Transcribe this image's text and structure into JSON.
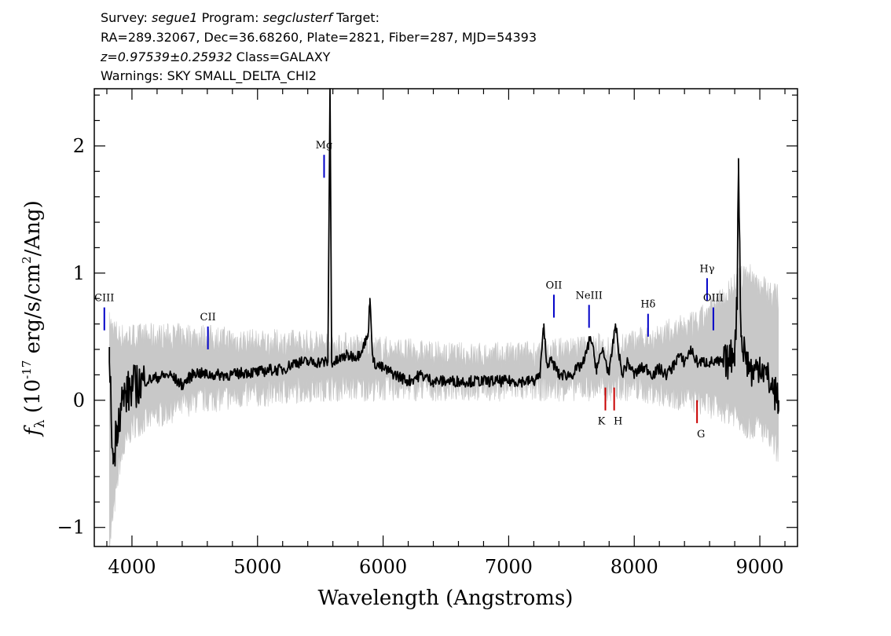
{
  "header": {
    "survey_label": "Survey:",
    "survey": "segue1",
    "program_label": "Program:",
    "program": "segclusterf",
    "target_label": "Target:",
    "line2": "RA=289.32067, Dec=36.68260, Plate=2821, Fiber=287, MJD=54393",
    "redshift": "z=0.97539±0.25932",
    "class_text": "Class=GALAXY",
    "warnings": "Warnings: SKY SMALL_DELTA_CHI2"
  },
  "chart_data": {
    "type": "line",
    "title": "",
    "xlabel": "Wavelength (Angstroms)",
    "ylabel": "f_λ (10^-17 erg/s/cm^2/Ang)",
    "xlim": [
      3700,
      9300
    ],
    "ylim": [
      -1.15,
      2.45
    ],
    "x_ticks": [
      4000,
      5000,
      6000,
      7000,
      8000,
      9000
    ],
    "x_tick_labels": [
      "4000",
      "5000",
      "6000",
      "7000",
      "8000",
      "9000"
    ],
    "y_ticks": [
      -1,
      0,
      1,
      2
    ],
    "y_tick_labels": [
      "−1",
      "0",
      "1",
      "2"
    ],
    "grid": false,
    "series": [
      {
        "role": "flux",
        "color": "#000000",
        "x": [
          3820,
          3850,
          3880,
          3920,
          3960,
          4000,
          4100,
          4200,
          4300,
          4400,
          4500,
          4600,
          4700,
          4800,
          4900,
          5000,
          5100,
          5200,
          5300,
          5400,
          5500,
          5560,
          5577,
          5590,
          5620,
          5700,
          5800,
          5880,
          5895,
          5920,
          6000,
          6100,
          6200,
          6300,
          6400,
          6500,
          6600,
          6700,
          6800,
          6900,
          7000,
          7100,
          7200,
          7250,
          7280,
          7300,
          7350,
          7400,
          7500,
          7600,
          7650,
          7700,
          7750,
          7800,
          7850,
          7900,
          7950,
          8000,
          8050,
          8100,
          8150,
          8200,
          8250,
          8300,
          8350,
          8400,
          8450,
          8500,
          8550,
          8600,
          8650,
          8700,
          8750,
          8800,
          8820,
          8830,
          8850,
          8900,
          8950,
          9000,
          9050,
          9100,
          9150
        ],
        "y": [
          0.3,
          -0.5,
          -0.2,
          0.0,
          0.05,
          0.1,
          0.15,
          0.18,
          0.2,
          0.12,
          0.22,
          0.2,
          0.2,
          0.2,
          0.22,
          0.22,
          0.24,
          0.24,
          0.3,
          0.3,
          0.3,
          0.3,
          2.45,
          0.3,
          0.3,
          0.35,
          0.35,
          0.5,
          0.8,
          0.3,
          0.25,
          0.2,
          0.15,
          0.2,
          0.15,
          0.15,
          0.15,
          0.15,
          0.15,
          0.15,
          0.15,
          0.15,
          0.15,
          0.2,
          0.6,
          0.3,
          0.3,
          0.2,
          0.2,
          0.3,
          0.5,
          0.25,
          0.4,
          0.2,
          0.6,
          0.2,
          0.3,
          0.2,
          0.25,
          0.25,
          0.2,
          0.25,
          0.2,
          0.25,
          0.35,
          0.3,
          0.4,
          0.3,
          0.3,
          0.3,
          0.3,
          0.3,
          0.3,
          0.4,
          0.8,
          1.9,
          0.5,
          0.3,
          0.2,
          0.3,
          0.2,
          0.1,
          0.0
        ]
      },
      {
        "role": "flux error envelope",
        "color": "#c8c8c8",
        "x": [
          3820,
          3900,
          4000,
          4500,
          5000,
          5500,
          6000,
          6500,
          7000,
          7500,
          8000,
          8500,
          8800,
          8900,
          9000,
          9150
        ],
        "y_low": [
          -1.15,
          -0.5,
          -0.2,
          0.0,
          0.05,
          0.1,
          0.1,
          0.1,
          0.1,
          0.1,
          0.1,
          0.0,
          -0.1,
          -0.2,
          -0.2,
          -0.4
        ],
        "y_high": [
          0.6,
          0.5,
          0.5,
          0.5,
          0.45,
          0.45,
          0.4,
          0.35,
          0.35,
          0.4,
          0.45,
          0.6,
          0.9,
          1.0,
          0.9,
          0.8
        ]
      }
    ],
    "emission_lines": [
      {
        "label": "CIII",
        "x": 3780,
        "y_low": 0.55,
        "y_high": 0.73,
        "color": "#0000c8"
      },
      {
        "label": "CII",
        "x": 4605,
        "y_low": 0.4,
        "y_high": 0.58,
        "color": "#0000c8"
      },
      {
        "label": "Mg",
        "x": 5530,
        "y_low": 1.75,
        "y_high": 1.93,
        "color": "#0000c8"
      },
      {
        "label": "OII",
        "x": 7360,
        "y_low": 0.65,
        "y_high": 0.83,
        "color": "#0000c8"
      },
      {
        "label": "NeIII",
        "x": 7640,
        "y_low": 0.57,
        "y_high": 0.75,
        "color": "#0000c8"
      },
      {
        "label": "Hδ",
        "x": 8110,
        "y_low": 0.5,
        "y_high": 0.68,
        "color": "#0000c8"
      },
      {
        "label": "Hγ",
        "x": 8580,
        "y_low": 0.78,
        "y_high": 0.96,
        "color": "#0000c8"
      },
      {
        "label": "OIII",
        "x": 8630,
        "y_low": 0.55,
        "y_high": 0.73,
        "color": "#0000c8"
      }
    ],
    "absorption_lines": [
      {
        "label": "K",
        "x": 7770,
        "y_low": -0.08,
        "y_high": 0.1,
        "color": "#c80000"
      },
      {
        "label": "H",
        "x": 7840,
        "y_low": -0.08,
        "y_high": 0.1,
        "color": "#c80000"
      },
      {
        "label": "G",
        "x": 8500,
        "y_low": -0.18,
        "y_high": 0.0,
        "color": "#c80000"
      }
    ]
  }
}
